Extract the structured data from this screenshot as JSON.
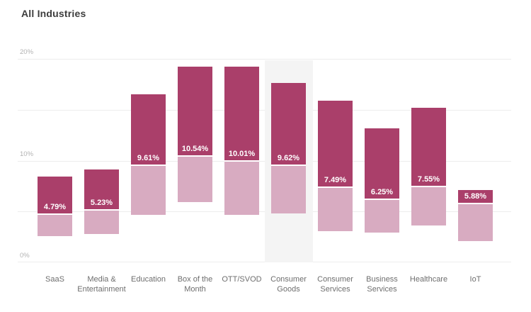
{
  "title": "All Industries",
  "colors": {
    "background": "#ffffff",
    "bar_dark": "#aa3f6a",
    "bar_light": "#d8abc1",
    "highlight_band": "#f4f4f4",
    "gridline": "#ededed",
    "axis_tick": "#b3b3b3",
    "category_label": "#6e6e6e",
    "title_text": "#3d3d3d",
    "value_label": "#ffffff"
  },
  "chart_data": {
    "type": "bar",
    "subtype": "floating-range-columns-with-split-marker",
    "title": "All Industries",
    "ylabel": "",
    "xlabel": "",
    "unit": "%",
    "ylim": [
      0,
      20
    ],
    "grid": true,
    "gridline_values": [
      0,
      5,
      10,
      15,
      20
    ],
    "yticks": [
      {
        "value": 20,
        "label": "20%"
      },
      {
        "value": 10,
        "label": "10%"
      },
      {
        "value": 0,
        "label": "0%"
      }
    ],
    "bars": [
      {
        "category": "SaaS",
        "label_lines": [
          "SaaS"
        ],
        "value": 4.79,
        "value_label": "4.79%",
        "range_low": 2.6,
        "range_high": 8.4,
        "highlighted": false
      },
      {
        "category": "Media & Entertainment",
        "label_lines": [
          "Media &",
          "Entertainment"
        ],
        "value": 5.23,
        "value_label": "5.23%",
        "range_low": 2.8,
        "range_high": 9.1,
        "highlighted": false
      },
      {
        "category": "Education",
        "label_lines": [
          "Education"
        ],
        "value": 9.61,
        "value_label": "9.61%",
        "range_low": 4.7,
        "range_high": 16.5,
        "highlighted": false
      },
      {
        "category": "Box of the Month",
        "label_lines": [
          "Box of the",
          "Month"
        ],
        "value": 10.54,
        "value_label": "10.54%",
        "range_low": 5.9,
        "range_high": 19.2,
        "highlighted": false
      },
      {
        "category": "OTT/SVOD",
        "label_lines": [
          "OTT/SVOD"
        ],
        "value": 10.01,
        "value_label": "10.01%",
        "range_low": 4.7,
        "range_high": 19.2,
        "highlighted": false
      },
      {
        "category": "Consumer Goods",
        "label_lines": [
          "Consumer",
          "Goods"
        ],
        "value": 9.62,
        "value_label": "9.62%",
        "range_low": 4.8,
        "range_high": 17.6,
        "highlighted": true
      },
      {
        "category": "Consumer Services",
        "label_lines": [
          "Consumer",
          "Services"
        ],
        "value": 7.49,
        "value_label": "7.49%",
        "range_low": 3.1,
        "range_high": 15.9,
        "highlighted": false
      },
      {
        "category": "Business Services",
        "label_lines": [
          "Business",
          "Services"
        ],
        "value": 6.25,
        "value_label": "6.25%",
        "range_low": 2.9,
        "range_high": 13.2,
        "highlighted": false
      },
      {
        "category": "Healthcare",
        "label_lines": [
          "Healthcare"
        ],
        "value": 7.55,
        "value_label": "7.55%",
        "range_low": 3.6,
        "range_high": 15.2,
        "highlighted": false
      },
      {
        "category": "IoT",
        "label_lines": [
          "IoT"
        ],
        "value": 5.88,
        "value_label": "5.88%",
        "range_low": 2.1,
        "range_high": 7.1,
        "highlighted": false
      }
    ]
  }
}
